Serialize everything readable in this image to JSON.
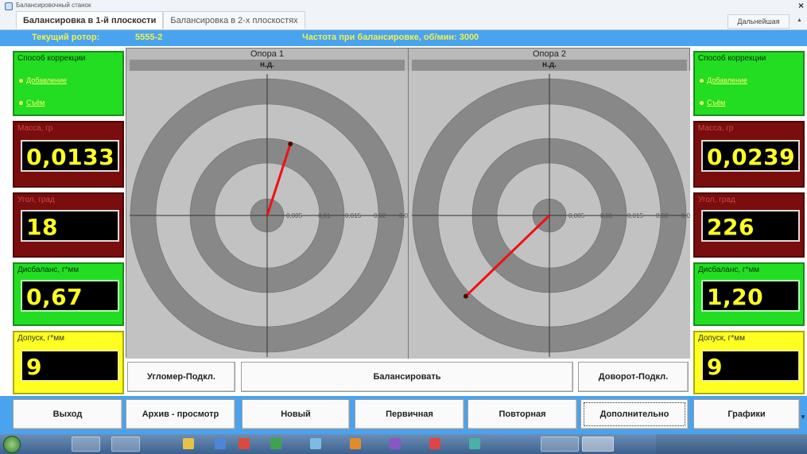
{
  "window": {
    "app_title": "Балансировочный станок",
    "tabs": [
      "Балансировка в 1-й плоскости",
      "Балансировка в 2-х плоскостях"
    ],
    "right_tab": "Дальнейшая",
    "close_glyph": "×"
  },
  "infobar": {
    "rotor_label": "Текущий ротор:",
    "rotor_value": "5555-2",
    "frequency_text": "Частота при балансировке, об/мин: 3000"
  },
  "left_panel": {
    "correction": {
      "title": "Способ коррекции",
      "options": [
        "Добавление",
        "Съём"
      ]
    },
    "mass": {
      "title": "Масса, гр",
      "value": "0,0133"
    },
    "angle": {
      "title": "Угол, град",
      "value": "18"
    },
    "imbalance": {
      "title": "Дисбаланс, г*мм",
      "value": "0,67"
    },
    "tolerance": {
      "title": "Допуск, г*мм",
      "value": "9"
    }
  },
  "right_panel": {
    "correction": {
      "title": "Способ коррекции",
      "options": [
        "Добавление",
        "Съём"
      ]
    },
    "mass": {
      "title": "Масса, гр",
      "value": "0,0239"
    },
    "angle": {
      "title": "Угол, град",
      "value": "226"
    },
    "imbalance": {
      "title": "Дисбаланс, г*мм",
      "value": "1,20"
    },
    "tolerance": {
      "title": "Допуск, г*мм",
      "value": "9"
    }
  },
  "plots": {
    "support1": {
      "title": "Опора 1",
      "status": "н.д.",
      "angle_deg": 18,
      "vector_fraction": 0.55
    },
    "support2": {
      "title": "Опора 2",
      "status": "н.д.",
      "angle_deg": 226,
      "vector_fraction": 0.85
    },
    "ring_labels": [
      "0,005",
      "0,01",
      "0,015",
      "0,02",
      "0,025"
    ],
    "colors": {
      "ring_dark": "#888888",
      "ring_light": "#c2c2c2",
      "vector": "#ee1111"
    }
  },
  "actions": {
    "goniometer": "Угломер-Подкл.",
    "balance": "Балансировать",
    "rotate": "Доворот-Подкл."
  },
  "bottom": {
    "exit": "Выход",
    "archive": "Архив - просмотр",
    "new": "Новый",
    "primary": "Первичная",
    "repeat": "Повторная",
    "additional": "Дополнительно",
    "graphs": "Графики"
  },
  "colors": {
    "info_bar": "#4aa3ee",
    "info_text": "#f2f24a",
    "panel_green": "#22dd22",
    "panel_red": "#7a0d0d",
    "panel_yellow": "#ffff22",
    "digit": "#ffff22"
  }
}
